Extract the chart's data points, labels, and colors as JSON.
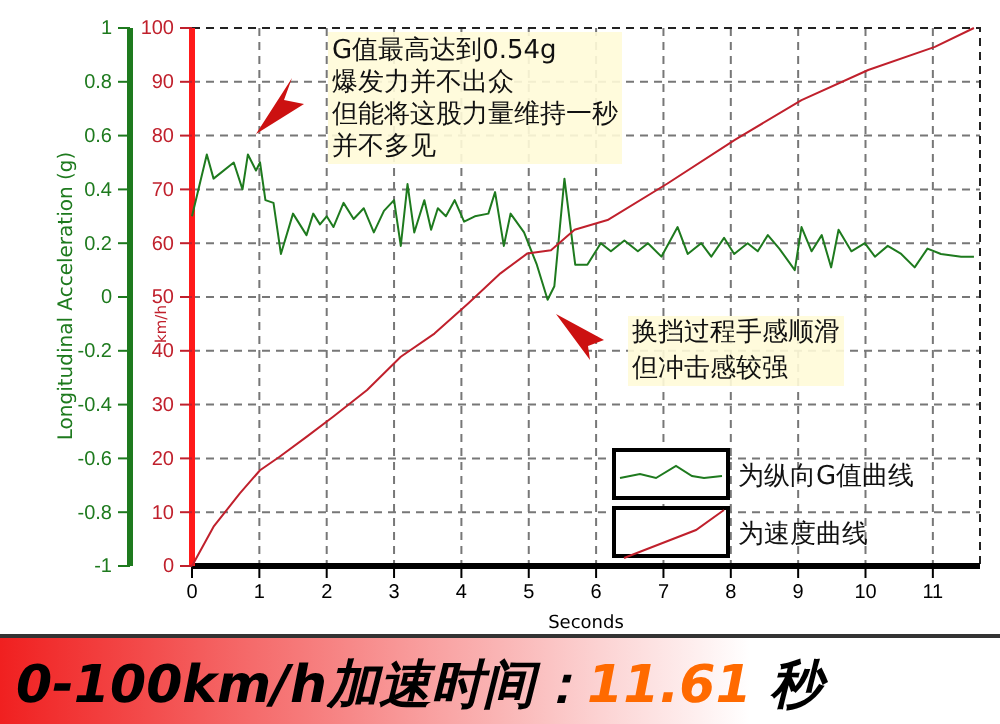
{
  "chart_data": {
    "type": "line",
    "xlabel": "Seconds",
    "ylabel": "Longitudinal Acceleration (g)",
    "y2label": "km/h",
    "xlim": [
      0,
      11.7
    ],
    "xticks": [
      0,
      1,
      2,
      3,
      4,
      5,
      6,
      7,
      8,
      9,
      10,
      11
    ],
    "ylim": [
      -1,
      1
    ],
    "yticks": [
      -1,
      -0.8,
      -0.6,
      -0.4,
      -0.2,
      0,
      0.2,
      0.4,
      0.6,
      0.8,
      1
    ],
    "y2lim": [
      0,
      100
    ],
    "y2ticks": [
      0,
      10,
      20,
      30,
      40,
      50,
      60,
      70,
      80,
      90,
      100
    ],
    "grid": true,
    "legend": "bottom right",
    "line_style": "solid",
    "marker": "none",
    "series": [
      {
        "name": "为纵向G值曲线",
        "color": "#1e7a1e",
        "x": [
          0,
          0.22,
          0.32,
          0.62,
          0.75,
          0.83,
          0.95,
          1.01,
          1.09,
          1.21,
          1.32,
          1.5,
          1.7,
          1.8,
          1.9,
          2.0,
          2.1,
          2.25,
          2.4,
          2.55,
          2.7,
          2.85,
          3.0,
          3.1,
          3.2,
          3.3,
          3.45,
          3.55,
          3.65,
          3.77,
          3.9,
          4.04,
          4.2,
          4.4,
          4.5,
          4.63,
          4.73,
          4.93,
          5.12,
          5.28,
          5.38,
          5.53,
          5.69,
          5.87,
          6.07,
          6.22,
          6.42,
          6.62,
          6.77,
          6.97,
          7.21,
          7.36,
          7.56,
          7.71,
          7.9,
          8.05,
          8.25,
          8.4,
          8.55,
          8.72,
          8.95,
          9.05,
          9.2,
          9.35,
          9.49,
          9.6,
          9.79,
          9.99,
          10.14,
          10.33,
          10.53,
          10.73,
          10.92,
          11.12,
          11.42,
          11.61
        ],
        "values": [
          0.3,
          0.53,
          0.44,
          0.5,
          0.4,
          0.53,
          0.47,
          0.5,
          0.36,
          0.35,
          0.16,
          0.31,
          0.23,
          0.31,
          0.27,
          0.3,
          0.26,
          0.35,
          0.29,
          0.33,
          0.24,
          0.32,
          0.36,
          0.19,
          0.42,
          0.24,
          0.36,
          0.25,
          0.33,
          0.3,
          0.36,
          0.28,
          0.3,
          0.31,
          0.39,
          0.19,
          0.31,
          0.24,
          0.12,
          -0.01,
          0.04,
          0.44,
          0.12,
          0.12,
          0.2,
          0.17,
          0.21,
          0.17,
          0.2,
          0.15,
          0.26,
          0.16,
          0.2,
          0.15,
          0.22,
          0.16,
          0.2,
          0.17,
          0.23,
          0.18,
          0.1,
          0.26,
          0.17,
          0.23,
          0.11,
          0.25,
          0.17,
          0.2,
          0.15,
          0.19,
          0.16,
          0.11,
          0.18,
          0.16,
          0.15,
          0.15
        ]
      },
      {
        "name": "为速度曲线",
        "color": "#c0202c",
        "axis": "y2",
        "x": [
          0,
          0.32,
          0.71,
          1.01,
          1.3,
          1.7,
          2.1,
          2.6,
          3.1,
          3.6,
          4.1,
          4.58,
          4.98,
          5.33,
          5.68,
          6.17,
          7.06,
          8.06,
          9.05,
          10.04,
          11.03,
          11.61
        ],
        "values": [
          0,
          7.3,
          13.5,
          17.8,
          20.3,
          24,
          27.8,
          32.7,
          38.9,
          43.2,
          48.8,
          54.4,
          58.1,
          58.7,
          62.5,
          64.3,
          71.1,
          79.2,
          86.6,
          92.2,
          96.5,
          100
        ]
      }
    ],
    "annotations": [
      "G值最高达到0.54g",
      "爆发力并不出众",
      "但能将这股力量维持一秒",
      "并不多见",
      "换挡过程手感顺滑",
      "但冲击感较强",
      "0-100km/h加速时间：11.61 秒"
    ]
  }
}
